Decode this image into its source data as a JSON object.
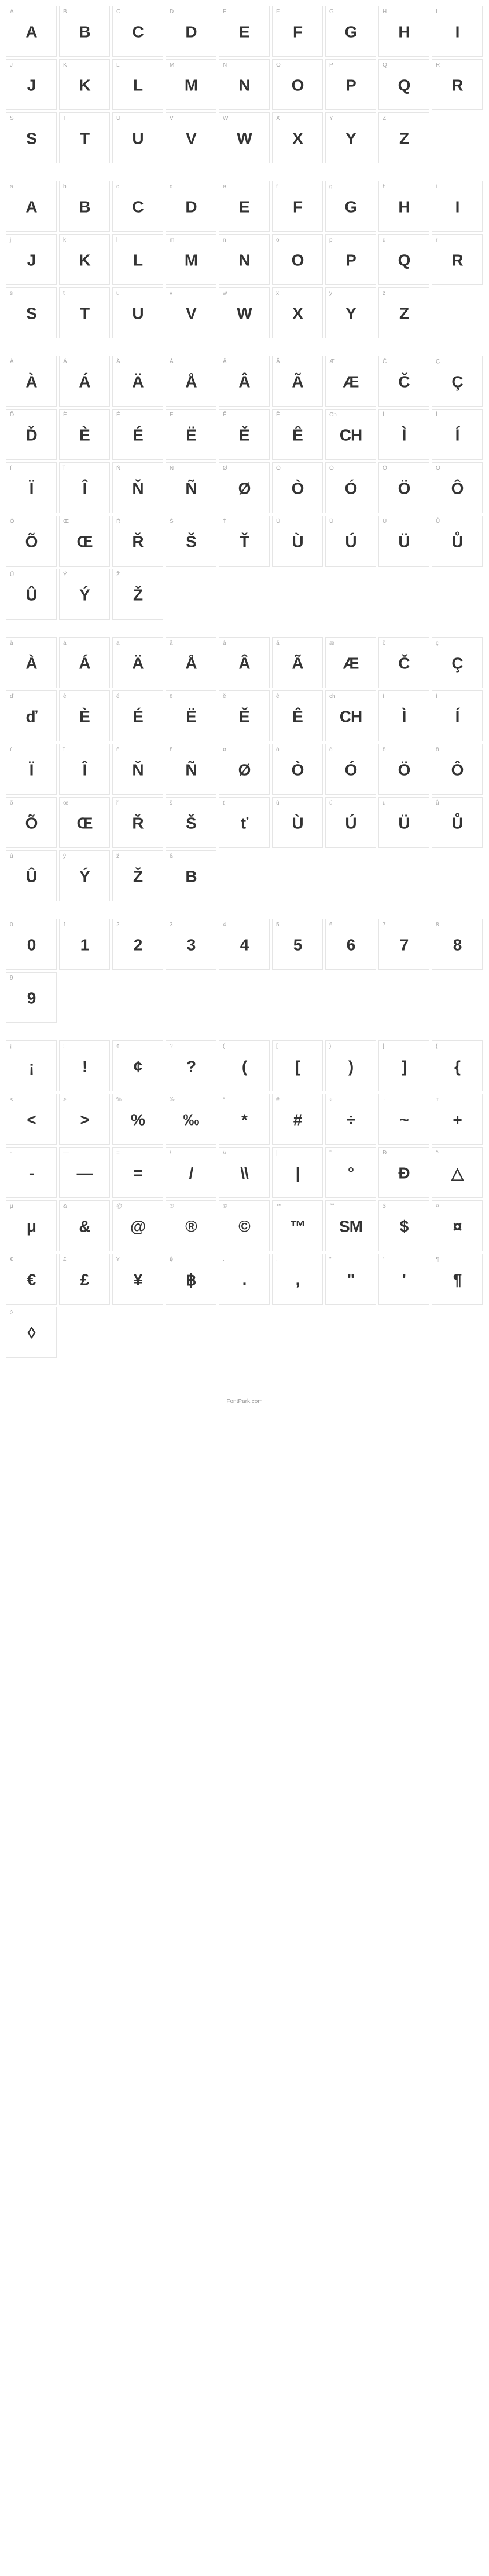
{
  "footer": "FontPark.com",
  "cell_border": "#e5e5e5",
  "label_color": "#aaaaaa",
  "glyph_color": "#333333",
  "label_fontsize": 10,
  "glyph_fontsize": 28,
  "cell_size": 88,
  "sections": [
    {
      "name": "uppercase",
      "cells": [
        {
          "label": "A",
          "glyph": "A"
        },
        {
          "label": "B",
          "glyph": "B"
        },
        {
          "label": "C",
          "glyph": "C"
        },
        {
          "label": "D",
          "glyph": "D"
        },
        {
          "label": "E",
          "glyph": "E"
        },
        {
          "label": "F",
          "glyph": "F"
        },
        {
          "label": "G",
          "glyph": "G"
        },
        {
          "label": "H",
          "glyph": "H"
        },
        {
          "label": "I",
          "glyph": "I"
        },
        {
          "label": "J",
          "glyph": "J"
        },
        {
          "label": "K",
          "glyph": "K"
        },
        {
          "label": "L",
          "glyph": "L"
        },
        {
          "label": "M",
          "glyph": "M"
        },
        {
          "label": "N",
          "glyph": "N"
        },
        {
          "label": "O",
          "glyph": "O"
        },
        {
          "label": "P",
          "glyph": "P"
        },
        {
          "label": "Q",
          "glyph": "Q"
        },
        {
          "label": "R",
          "glyph": "R"
        },
        {
          "label": "S",
          "glyph": "S"
        },
        {
          "label": "T",
          "glyph": "T"
        },
        {
          "label": "U",
          "glyph": "U"
        },
        {
          "label": "V",
          "glyph": "V"
        },
        {
          "label": "W",
          "glyph": "W"
        },
        {
          "label": "X",
          "glyph": "X"
        },
        {
          "label": "Y",
          "glyph": "Y"
        },
        {
          "label": "Z",
          "glyph": "Z"
        }
      ]
    },
    {
      "name": "lowercase",
      "cells": [
        {
          "label": "a",
          "glyph": "A"
        },
        {
          "label": "b",
          "glyph": "B"
        },
        {
          "label": "c",
          "glyph": "C"
        },
        {
          "label": "d",
          "glyph": "D"
        },
        {
          "label": "e",
          "glyph": "E"
        },
        {
          "label": "f",
          "glyph": "F"
        },
        {
          "label": "g",
          "glyph": "G"
        },
        {
          "label": "h",
          "glyph": "H"
        },
        {
          "label": "i",
          "glyph": "I"
        },
        {
          "label": "j",
          "glyph": "J"
        },
        {
          "label": "k",
          "glyph": "K"
        },
        {
          "label": "l",
          "glyph": "L"
        },
        {
          "label": "m",
          "glyph": "M"
        },
        {
          "label": "n",
          "glyph": "N"
        },
        {
          "label": "o",
          "glyph": "O"
        },
        {
          "label": "p",
          "glyph": "P"
        },
        {
          "label": "q",
          "glyph": "Q"
        },
        {
          "label": "r",
          "glyph": "R"
        },
        {
          "label": "s",
          "glyph": "S"
        },
        {
          "label": "t",
          "glyph": "T"
        },
        {
          "label": "u",
          "glyph": "U"
        },
        {
          "label": "v",
          "glyph": "V"
        },
        {
          "label": "w",
          "glyph": "W"
        },
        {
          "label": "x",
          "glyph": "X"
        },
        {
          "label": "y",
          "glyph": "Y"
        },
        {
          "label": "z",
          "glyph": "Z"
        }
      ]
    },
    {
      "name": "accented-uppercase",
      "cells": [
        {
          "label": "À",
          "glyph": "À"
        },
        {
          "label": "Á",
          "glyph": "Á"
        },
        {
          "label": "Ä",
          "glyph": "Ä"
        },
        {
          "label": "Å",
          "glyph": "Å"
        },
        {
          "label": "Â",
          "glyph": "Â"
        },
        {
          "label": "Ã",
          "glyph": "Ã"
        },
        {
          "label": "Æ",
          "glyph": "Æ"
        },
        {
          "label": "Č",
          "glyph": "Č"
        },
        {
          "label": "Ç",
          "glyph": "Ç"
        },
        {
          "label": "Ď",
          "glyph": "Ď"
        },
        {
          "label": "È",
          "glyph": "È"
        },
        {
          "label": "É",
          "glyph": "É"
        },
        {
          "label": "Ë",
          "glyph": "Ë"
        },
        {
          "label": "Ě",
          "glyph": "Ě"
        },
        {
          "label": "Ê",
          "glyph": "Ê"
        },
        {
          "label": "Ch",
          "glyph": "CH"
        },
        {
          "label": "Ì",
          "glyph": "Ì"
        },
        {
          "label": "Í",
          "glyph": "Í"
        },
        {
          "label": "Ï",
          "glyph": "Ï"
        },
        {
          "label": "Î",
          "glyph": "Î"
        },
        {
          "label": "Ň",
          "glyph": "Ň"
        },
        {
          "label": "Ñ",
          "glyph": "Ñ"
        },
        {
          "label": "Ø",
          "glyph": "Ø"
        },
        {
          "label": "Ò",
          "glyph": "Ò"
        },
        {
          "label": "Ó",
          "glyph": "Ó"
        },
        {
          "label": "Ö",
          "glyph": "Ö"
        },
        {
          "label": "Ô",
          "glyph": "Ô"
        },
        {
          "label": "Õ",
          "glyph": "Õ"
        },
        {
          "label": "Œ",
          "glyph": "Œ"
        },
        {
          "label": "Ř",
          "glyph": "Ř"
        },
        {
          "label": "Š",
          "glyph": "Š"
        },
        {
          "label": "Ť",
          "glyph": "Ť"
        },
        {
          "label": "Ù",
          "glyph": "Ù"
        },
        {
          "label": "Ú",
          "glyph": "Ú"
        },
        {
          "label": "Ü",
          "glyph": "Ü"
        },
        {
          "label": "Ů",
          "glyph": "Ů"
        },
        {
          "label": "Û",
          "glyph": "Û"
        },
        {
          "label": "Ý",
          "glyph": "Ý"
        },
        {
          "label": "Ž",
          "glyph": "Ž"
        }
      ]
    },
    {
      "name": "accented-lowercase",
      "cells": [
        {
          "label": "à",
          "glyph": "À"
        },
        {
          "label": "á",
          "glyph": "Á"
        },
        {
          "label": "ä",
          "glyph": "Ä"
        },
        {
          "label": "å",
          "glyph": "Å"
        },
        {
          "label": "â",
          "glyph": "Â"
        },
        {
          "label": "ã",
          "glyph": "Ã"
        },
        {
          "label": "æ",
          "glyph": "Æ"
        },
        {
          "label": "č",
          "glyph": "Č"
        },
        {
          "label": "ç",
          "glyph": "Ç"
        },
        {
          "label": "ď",
          "glyph": "ď"
        },
        {
          "label": "è",
          "glyph": "È"
        },
        {
          "label": "é",
          "glyph": "É"
        },
        {
          "label": "ë",
          "glyph": "Ë"
        },
        {
          "label": "ě",
          "glyph": "Ě"
        },
        {
          "label": "ê",
          "glyph": "Ê"
        },
        {
          "label": "ch",
          "glyph": "CH"
        },
        {
          "label": "ì",
          "glyph": "Ì"
        },
        {
          "label": "í",
          "glyph": "Í"
        },
        {
          "label": "ï",
          "glyph": "Ï"
        },
        {
          "label": "î",
          "glyph": "Î"
        },
        {
          "label": "ň",
          "glyph": "Ň"
        },
        {
          "label": "ñ",
          "glyph": "Ñ"
        },
        {
          "label": "ø",
          "glyph": "Ø"
        },
        {
          "label": "ò",
          "glyph": "Ò"
        },
        {
          "label": "ó",
          "glyph": "Ó"
        },
        {
          "label": "ö",
          "glyph": "Ö"
        },
        {
          "label": "ô",
          "glyph": "Ô"
        },
        {
          "label": "õ",
          "glyph": "Õ"
        },
        {
          "label": "œ",
          "glyph": "Œ"
        },
        {
          "label": "ř",
          "glyph": "Ř"
        },
        {
          "label": "š",
          "glyph": "Š"
        },
        {
          "label": "ť",
          "glyph": "ť"
        },
        {
          "label": "ù",
          "glyph": "Ù"
        },
        {
          "label": "ú",
          "glyph": "Ú"
        },
        {
          "label": "ü",
          "glyph": "Ü"
        },
        {
          "label": "ů",
          "glyph": "Ů"
        },
        {
          "label": "û",
          "glyph": "Û"
        },
        {
          "label": "ý",
          "glyph": "Ý"
        },
        {
          "label": "ž",
          "glyph": "Ž"
        },
        {
          "label": "ß",
          "glyph": "B"
        }
      ]
    },
    {
      "name": "numbers",
      "cells": [
        {
          "label": "0",
          "glyph": "0"
        },
        {
          "label": "1",
          "glyph": "1"
        },
        {
          "label": "2",
          "glyph": "2"
        },
        {
          "label": "3",
          "glyph": "3"
        },
        {
          "label": "4",
          "glyph": "4"
        },
        {
          "label": "5",
          "glyph": "5"
        },
        {
          "label": "6",
          "glyph": "6"
        },
        {
          "label": "7",
          "glyph": "7"
        },
        {
          "label": "8",
          "glyph": "8"
        },
        {
          "label": "9",
          "glyph": "9"
        }
      ]
    },
    {
      "name": "symbols",
      "cells": [
        {
          "label": "¡",
          "glyph": "¡"
        },
        {
          "label": "!",
          "glyph": "!"
        },
        {
          "label": "¢",
          "glyph": "¢"
        },
        {
          "label": "?",
          "glyph": "?"
        },
        {
          "label": "(",
          "glyph": "("
        },
        {
          "label": "[",
          "glyph": "["
        },
        {
          "label": ")",
          "glyph": ")"
        },
        {
          "label": "]",
          "glyph": "]"
        },
        {
          "label": "{",
          "glyph": "{"
        },
        {
          "label": "<",
          "glyph": "<"
        },
        {
          "label": ">",
          "glyph": ">"
        },
        {
          "label": "%",
          "glyph": "%"
        },
        {
          "label": "‰",
          "glyph": "‰"
        },
        {
          "label": "*",
          "glyph": "*"
        },
        {
          "label": "#",
          "glyph": "#"
        },
        {
          "label": "÷",
          "glyph": "÷"
        },
        {
          "label": "~",
          "glyph": "~"
        },
        {
          "label": "+",
          "glyph": "+"
        },
        {
          "label": "-",
          "glyph": "-"
        },
        {
          "label": "—",
          "glyph": "—"
        },
        {
          "label": "=",
          "glyph": "="
        },
        {
          "label": "/",
          "glyph": "/"
        },
        {
          "label": "\\\\",
          "glyph": "\\\\"
        },
        {
          "label": "|",
          "glyph": "|"
        },
        {
          "label": "°",
          "glyph": "°"
        },
        {
          "label": "Ð",
          "glyph": "Ð"
        },
        {
          "label": "^",
          "glyph": "△"
        },
        {
          "label": "μ",
          "glyph": "μ"
        },
        {
          "label": "&",
          "glyph": "&"
        },
        {
          "label": "@",
          "glyph": "@"
        },
        {
          "label": "®",
          "glyph": "®"
        },
        {
          "label": "©",
          "glyph": "©"
        },
        {
          "label": "™",
          "glyph": "™"
        },
        {
          "label": "℠",
          "glyph": "SM"
        },
        {
          "label": "$",
          "glyph": "$"
        },
        {
          "label": "¤",
          "glyph": "¤"
        },
        {
          "label": "€",
          "glyph": "€"
        },
        {
          "label": "£",
          "glyph": "£"
        },
        {
          "label": "¥",
          "glyph": "¥"
        },
        {
          "label": "฿",
          "glyph": "฿"
        },
        {
          "label": ".",
          "glyph": "."
        },
        {
          "label": ",",
          "glyph": ","
        },
        {
          "label": "\"",
          "glyph": "\""
        },
        {
          "label": "'",
          "glyph": "'"
        },
        {
          "label": "¶",
          "glyph": "¶"
        },
        {
          "label": "◊",
          "glyph": "◊"
        }
      ]
    }
  ]
}
